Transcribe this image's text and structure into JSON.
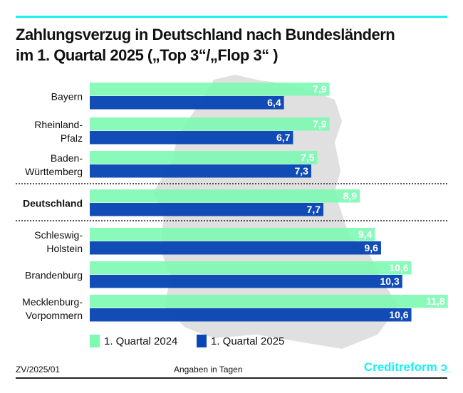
{
  "title_lines": [
    "Zahlungsverzug in Deutschland nach Bundesländern",
    "im 1. Quartal 2025 („Top 3“/„Flop 3“ )"
  ],
  "chart_data": {
    "type": "bar",
    "orientation": "horizontal",
    "title": "Zahlungsverzug in Deutschland nach Bundesländern im 1. Quartal 2025 („Top 3“/„Flop 3“ )",
    "unit": "Angaben in Tagen",
    "categories": [
      [
        "Bayern"
      ],
      [
        "Rheinland-",
        "Pfalz"
      ],
      [
        "Baden-",
        "Württemberg"
      ],
      [
        "Deutschland"
      ],
      [
        "Schleswig-",
        "Holstein"
      ],
      [
        "Brandenburg"
      ],
      [
        "Mecklenburg-",
        "Vorpommern"
      ]
    ],
    "bold_category": 3,
    "separators_after": [
      2,
      3
    ],
    "series": [
      {
        "name": "1. Quartal 2024",
        "color": "#7dfab4",
        "values": [
          7.9,
          7.9,
          7.5,
          8.9,
          9.4,
          10.6,
          11.8
        ],
        "labels": [
          "7,9",
          "7,9",
          "7,5",
          "8,9",
          "9,4",
          "10,6",
          "11,8"
        ]
      },
      {
        "name": "1. Quartal 2025",
        "color": "#0a46b4",
        "values": [
          6.4,
          6.7,
          7.3,
          7.7,
          9.6,
          10.3,
          10.6
        ],
        "labels": [
          "6,4",
          "6,7",
          "7,3",
          "7,7",
          "9,6",
          "10,3",
          "10,6"
        ]
      }
    ],
    "legend": "bottom",
    "grid": false
  },
  "footer": {
    "code": "ZV/2025/01",
    "unit": "Angaben in Tagen",
    "logo": "Creditreform"
  }
}
